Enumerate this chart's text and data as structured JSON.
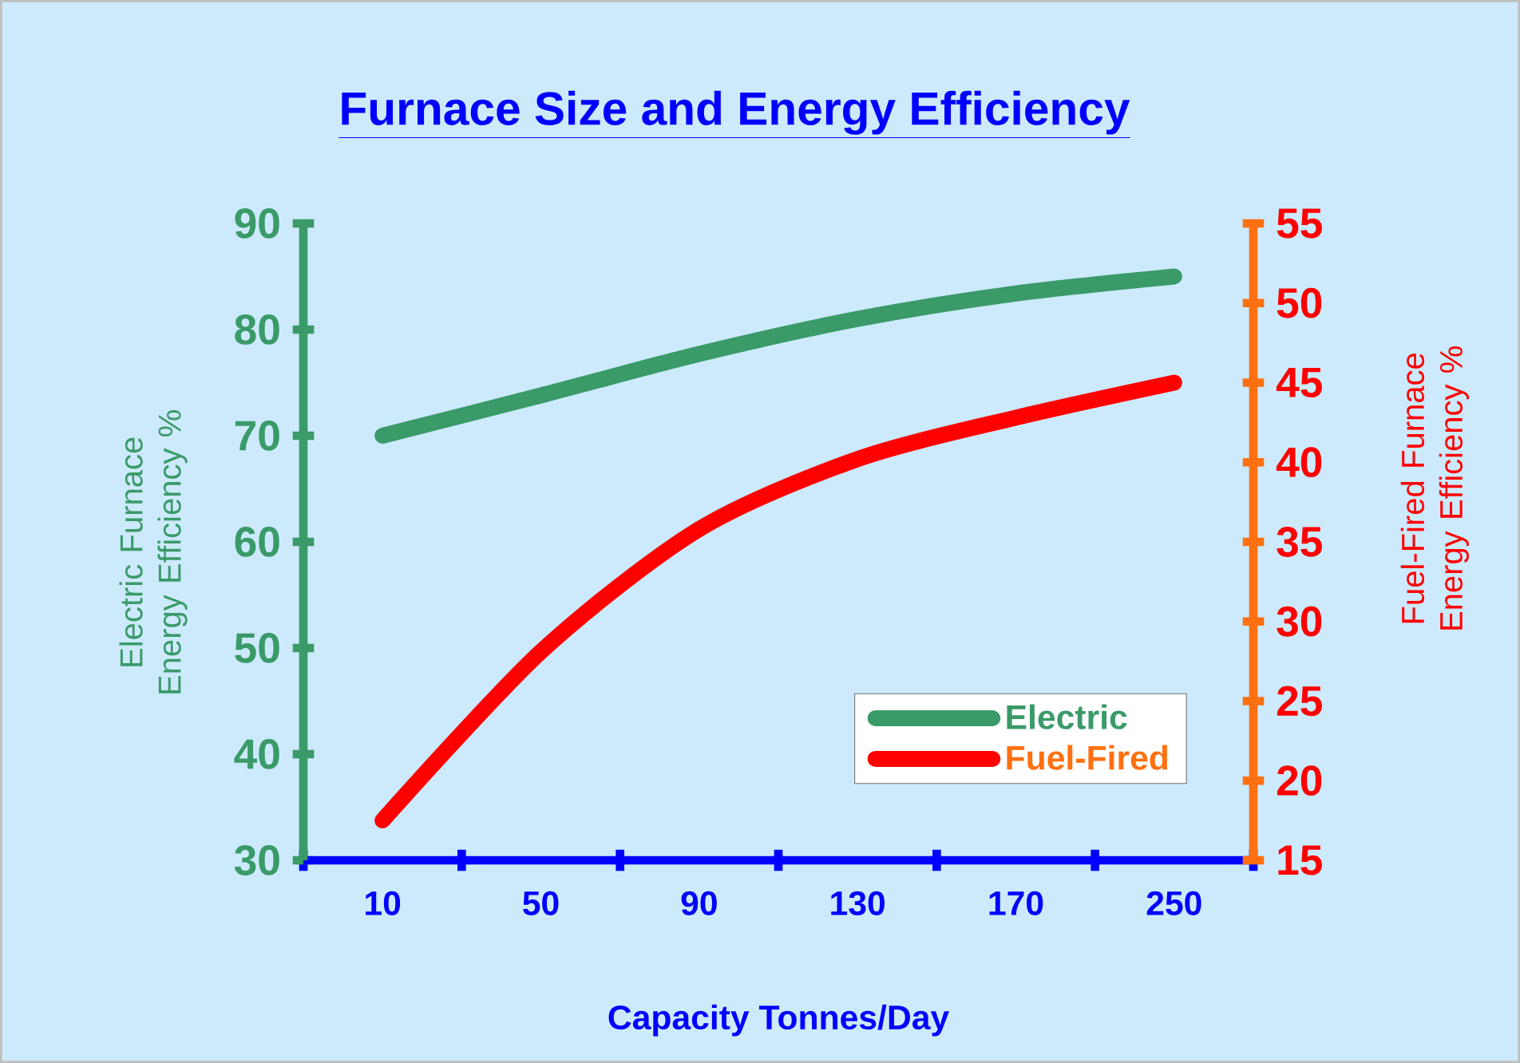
{
  "chart_data": {
    "type": "line",
    "title": "Furnace Size and Energy Efficiency",
    "xlabel": "Capacity Tonnes/Day",
    "ylabel": "Electric Furnace Energy Efficiency %",
    "y2label": "Fuel-Fired Furnace Energy Efficiency %",
    "categories": [
      "10",
      "50",
      "90",
      "130",
      "170",
      "250"
    ],
    "series": [
      {
        "name": "Electric",
        "color": "#3a9a68",
        "values": [
          70,
          73.8,
          77.7,
          81,
          83.4,
          85
        ]
      },
      {
        "name": "Fuel-Fired",
        "color": "#ff0000",
        "axis": "y2",
        "values": [
          17.5,
          28.1,
          35.8,
          40.2,
          42.8,
          45
        ]
      }
    ],
    "ylim": [
      30,
      90
    ],
    "yticks": [
      30,
      40,
      50,
      60,
      70,
      80,
      90
    ],
    "y2lim": [
      15,
      55
    ],
    "y2ticks": [
      15,
      20,
      25,
      30,
      35,
      40,
      45,
      50,
      55
    ],
    "legend": "bottom right"
  }
}
